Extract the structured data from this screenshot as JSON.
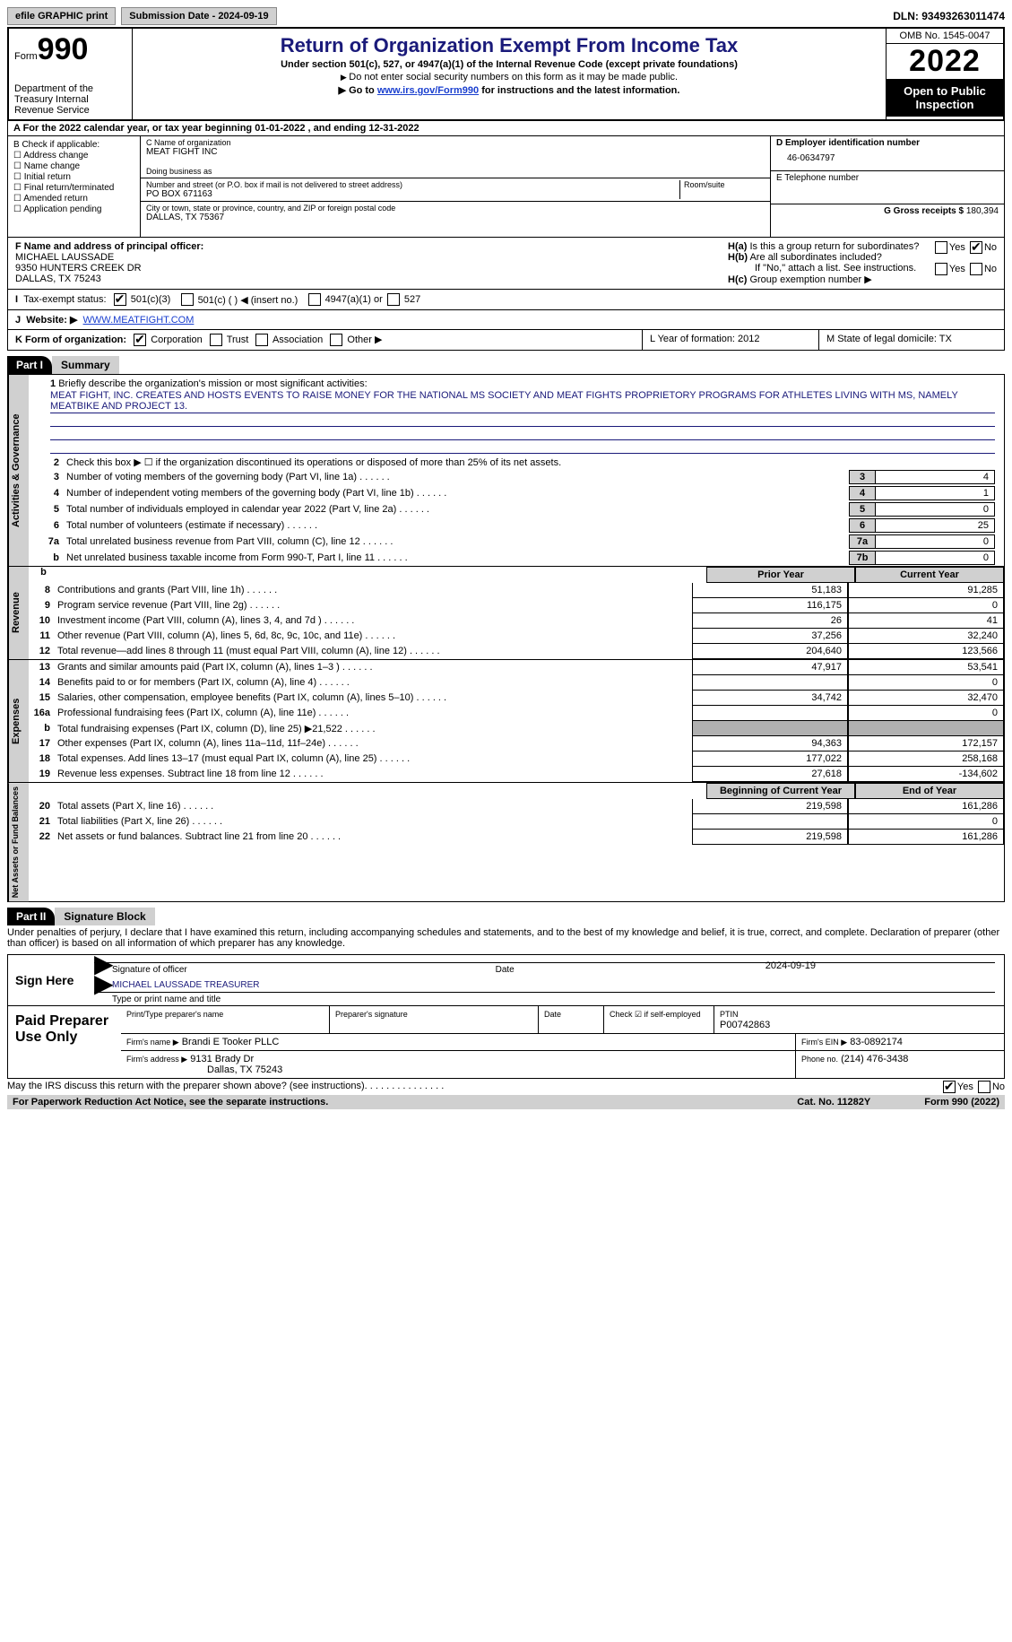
{
  "top": {
    "efile": "efile GRAPHIC print",
    "submission": "Submission Date - 2024-09-19",
    "dln": "DLN: 93493263011474"
  },
  "header": {
    "form_prefix": "Form",
    "form_no": "990",
    "dept": "Department of the Treasury\nInternal Revenue Service",
    "title": "Return of Organization Exempt From Income Tax",
    "sub": "Under section 501(c), 527, or 4947(a)(1) of the Internal Revenue Code (except private foundations)",
    "note1": "Do not enter social security numbers on this form as it may be made public.",
    "note2_pre": "Go to ",
    "note2_link": "www.irs.gov/Form990",
    "note2_post": " for instructions and the latest information.",
    "omb": "OMB No. 1545-0047",
    "year": "2022",
    "open": "Open to Public Inspection"
  },
  "row_a": "A For the 2022 calendar year, or tax year beginning 01-01-2022    , and ending 12-31-2022",
  "col_b": {
    "hdr": "B Check if applicable:",
    "items": [
      "Address change",
      "Name change",
      "Initial return",
      "Final return/terminated",
      "Amended return",
      "Application pending"
    ]
  },
  "col_c": {
    "name_lbl": "C Name of organization",
    "name": "MEAT FIGHT INC",
    "dba": "Doing business as",
    "addr_lbl": "Number and street (or P.O. box if mail is not delivered to street address)",
    "room": "Room/suite",
    "addr": "PO BOX 671163",
    "city_lbl": "City or town, state or province, country, and ZIP or foreign postal code",
    "city": "DALLAS, TX  75367"
  },
  "col_de": {
    "d_lbl": "D Employer identification number",
    "d": "46-0634797",
    "e_lbl": "E Telephone number",
    "g_lbl": "G Gross receipts $",
    "g": "180,394"
  },
  "officer": {
    "f_lbl": "F Name and address of principal officer:",
    "name": "MICHAEL LAUSSADE",
    "addr1": "9350 HUNTERS CREEK DR",
    "addr2": "DALLAS, TX  75243",
    "ha": "Is this a group return for subordinates?",
    "hb": "Are all subordinates included?",
    "hb_note": "If \"No,\" attach a list. See instructions.",
    "hc": "Group exemption number ▶"
  },
  "row_i": {
    "lbl": "Tax-exempt status:",
    "o1": "501(c)(3)",
    "o2": "501(c) (  ) ◀ (insert no.)",
    "o3": "4947(a)(1) or",
    "o4": "527"
  },
  "row_j": {
    "lbl": "Website: ▶",
    "val": "WWW.MEATFIGHT.COM"
  },
  "row_k": {
    "lbl": "K Form of organization:",
    "o1": "Corporation",
    "o2": "Trust",
    "o3": "Association",
    "o4": "Other ▶",
    "l": "L Year of formation: 2012",
    "m": "M State of legal domicile: TX"
  },
  "parts": {
    "p1": "Part I",
    "p1t": "Summary",
    "p2": "Part II",
    "p2t": "Signature Block"
  },
  "sides": {
    "ag": "Activities & Governance",
    "rev": "Revenue",
    "exp": "Expenses",
    "na": "Net Assets or Fund Balances"
  },
  "mission": {
    "lbl": "Briefly describe the organization's mission or most significant activities:",
    "text": "MEAT FIGHT, INC. CREATES AND HOSTS EVENTS TO RAISE MONEY FOR THE NATIONAL MS SOCIETY AND MEAT FIGHTS PROPRIETORY PROGRAMS FOR ATHLETES LIVING WITH MS, NAMELY MEATBIKE AND PROJECT 13."
  },
  "line2": "Check this box ▶ ☐ if the organization discontinued its operations or disposed of more than 25% of its net assets.",
  "gov_lines": [
    {
      "n": "3",
      "lbl": "Number of voting members of the governing body (Part VI, line 1a)",
      "box": "3",
      "val": "4"
    },
    {
      "n": "4",
      "lbl": "Number of independent voting members of the governing body (Part VI, line 1b)",
      "box": "4",
      "val": "1"
    },
    {
      "n": "5",
      "lbl": "Total number of individuals employed in calendar year 2022 (Part V, line 2a)",
      "box": "5",
      "val": "0"
    },
    {
      "n": "6",
      "lbl": "Total number of volunteers (estimate if necessary)",
      "box": "6",
      "val": "25"
    },
    {
      "n": "7a",
      "lbl": "Total unrelated business revenue from Part VIII, column (C), line 12",
      "box": "7a",
      "val": "0"
    },
    {
      "n": "b",
      "lbl": "Net unrelated business taxable income from Form 990-T, Part I, line 11",
      "box": "7b",
      "val": "0"
    }
  ],
  "col_hdrs": {
    "py": "Prior Year",
    "cy": "Current Year",
    "boy": "Beginning of Current Year",
    "eoy": "End of Year"
  },
  "rev": [
    {
      "n": "8",
      "lbl": "Contributions and grants (Part VIII, line 1h)",
      "c1": "51,183",
      "c2": "91,285"
    },
    {
      "n": "9",
      "lbl": "Program service revenue (Part VIII, line 2g)",
      "c1": "116,175",
      "c2": "0"
    },
    {
      "n": "10",
      "lbl": "Investment income (Part VIII, column (A), lines 3, 4, and 7d )",
      "c1": "26",
      "c2": "41"
    },
    {
      "n": "11",
      "lbl": "Other revenue (Part VIII, column (A), lines 5, 6d, 8c, 9c, 10c, and 11e)",
      "c1": "37,256",
      "c2": "32,240"
    },
    {
      "n": "12",
      "lbl": "Total revenue—add lines 8 through 11 (must equal Part VIII, column (A), line 12)",
      "c1": "204,640",
      "c2": "123,566"
    }
  ],
  "exp": [
    {
      "n": "13",
      "lbl": "Grants and similar amounts paid (Part IX, column (A), lines 1–3 )",
      "c1": "47,917",
      "c2": "53,541"
    },
    {
      "n": "14",
      "lbl": "Benefits paid to or for members (Part IX, column (A), line 4)",
      "c1": "",
      "c2": "0"
    },
    {
      "n": "15",
      "lbl": "Salaries, other compensation, employee benefits (Part IX, column (A), lines 5–10)",
      "c1": "34,742",
      "c2": "32,470"
    },
    {
      "n": "16a",
      "lbl": "Professional fundraising fees (Part IX, column (A), line 11e)",
      "c1": "",
      "c2": "0"
    },
    {
      "n": "b",
      "lbl": "Total fundraising expenses (Part IX, column (D), line 25) ▶21,522",
      "c1": "shade",
      "c2": "shade"
    },
    {
      "n": "17",
      "lbl": "Other expenses (Part IX, column (A), lines 11a–11d, 11f–24e)",
      "c1": "94,363",
      "c2": "172,157"
    },
    {
      "n": "18",
      "lbl": "Total expenses. Add lines 13–17 (must equal Part IX, column (A), line 25)",
      "c1": "177,022",
      "c2": "258,168"
    },
    {
      "n": "19",
      "lbl": "Revenue less expenses. Subtract line 18 from line 12",
      "c1": "27,618",
      "c2": "-134,602"
    }
  ],
  "na": [
    {
      "n": "20",
      "lbl": "Total assets (Part X, line 16)",
      "c1": "219,598",
      "c2": "161,286"
    },
    {
      "n": "21",
      "lbl": "Total liabilities (Part X, line 26)",
      "c1": "",
      "c2": "0"
    },
    {
      "n": "22",
      "lbl": "Net assets or fund balances. Subtract line 21 from line 20",
      "c1": "219,598",
      "c2": "161,286"
    }
  ],
  "sig": {
    "decl": "Under penalties of perjury, I declare that I have examined this return, including accompanying schedules and statements, and to the best of my knowledge and belief, it is true, correct, and complete. Declaration of preparer (other than officer) is based on all information of which preparer has any knowledge.",
    "sign_here": "Sign Here",
    "sig_officer": "Signature of officer",
    "date": "2024-09-19",
    "name": "MICHAEL LAUSSADE  TREASURER",
    "name_lbl": "Type or print name and title"
  },
  "prep": {
    "title": "Paid Preparer Use Only",
    "h1": "Print/Type preparer's name",
    "h2": "Preparer's signature",
    "h3": "Date",
    "h4": "Check ☑ if self-employed",
    "h5": "PTIN",
    "ptin": "P00742863",
    "firm_lbl": "Firm's name    ▶",
    "firm": "Brandi E Tooker PLLC",
    "ein_lbl": "Firm's EIN ▶",
    "ein": "83-0892174",
    "addr_lbl": "Firm's address ▶",
    "addr1": "9131 Brady Dr",
    "addr2": "Dallas, TX  75243",
    "phone_lbl": "Phone no.",
    "phone": "(214) 476-3438"
  },
  "footer": {
    "q": "May the IRS discuss this return with the preparer shown above? (see instructions)",
    "notice": "For Paperwork Reduction Act Notice, see the separate instructions.",
    "cat": "Cat. No. 11282Y",
    "form": "Form 990 (2022)"
  }
}
